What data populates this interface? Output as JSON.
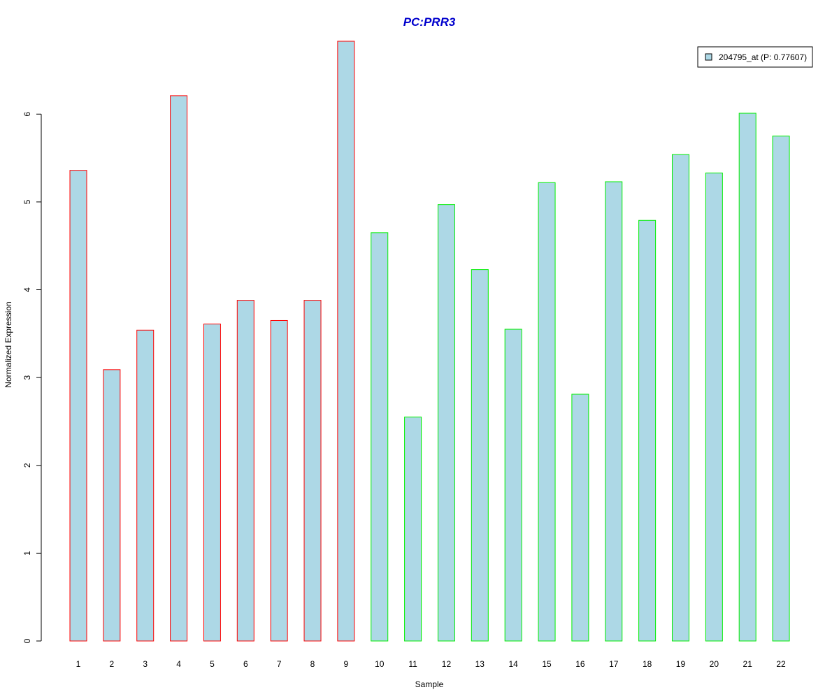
{
  "chart_data": {
    "type": "bar",
    "title": "PC:PRR3",
    "xlabel": "Sample",
    "ylabel": "Normalized Expression",
    "categories": [
      "1",
      "2",
      "3",
      "4",
      "5",
      "6",
      "7",
      "8",
      "9",
      "10",
      "11",
      "12",
      "13",
      "14",
      "15",
      "16",
      "17",
      "18",
      "19",
      "20",
      "21",
      "22"
    ],
    "values": [
      5.36,
      3.09,
      3.54,
      6.21,
      3.61,
      3.88,
      3.65,
      3.88,
      6.83,
      4.65,
      2.55,
      4.97,
      4.23,
      3.55,
      5.22,
      2.81,
      5.23,
      4.79,
      5.54,
      5.33,
      6.01,
      5.75
    ],
    "groups": [
      "a",
      "a",
      "a",
      "a",
      "a",
      "a",
      "a",
      "a",
      "a",
      "b",
      "b",
      "b",
      "b",
      "b",
      "b",
      "b",
      "b",
      "b",
      "b",
      "b",
      "b",
      "b"
    ],
    "yticks": [
      0,
      1,
      2,
      3,
      4,
      5,
      6
    ],
    "ylim": [
      0,
      6.83
    ],
    "grid": false,
    "legend": {
      "position": "top-right",
      "label": "204795_at (P: 0.77607)"
    },
    "colors": {
      "bar_fill": "#add8e6",
      "group_a_border": "#ff0000",
      "group_b_border": "#00ee00",
      "title": "#0000cd"
    }
  }
}
